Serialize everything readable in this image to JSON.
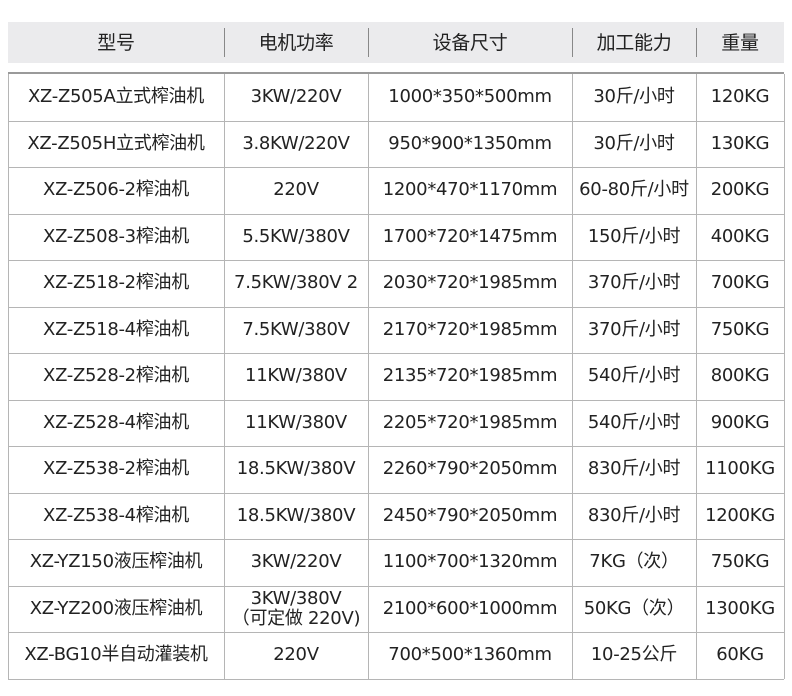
{
  "table": {
    "header": [
      "型号",
      "电机功率",
      "设备尺寸",
      "加工能力",
      "重量"
    ],
    "rows": [
      [
        "XZ-Z505A立式榨油机",
        "3KW/220V",
        "1000*350*500mm",
        "30斤/小时",
        "120KG"
      ],
      [
        "XZ-Z505H立式榨油机",
        "3.8KW/220V",
        "950*900*1350mm",
        "30斤/小时",
        "130KG"
      ],
      [
        "XZ-Z506-2榨油机",
        "220V",
        "1200*470*1170mm",
        "60-80斤/小时",
        "200KG"
      ],
      [
        "XZ-Z508-3榨油机",
        "5.5KW/380V",
        "1700*720*1475mm",
        "150斤/小时",
        "400KG"
      ],
      [
        "XZ-Z518-2榨油机",
        "7.5KW/380V 2",
        "2030*720*1985mm",
        "370斤/小时",
        "700KG"
      ],
      [
        "XZ-Z518-4榨油机",
        "7.5KW/380V",
        "2170*720*1985mm",
        "370斤/小时",
        "750KG"
      ],
      [
        "XZ-Z528-2榨油机",
        "11KW/380V",
        "2135*720*1985mm",
        "540斤/小时",
        "800KG"
      ],
      [
        "XZ-Z528-4榨油机",
        "11KW/380V",
        "2205*720*1985mm",
        "540斤/小时",
        "900KG"
      ],
      [
        "XZ-Z538-2榨油机",
        "18.5KW/380V",
        "2260*790*2050mm",
        "830斤/小时",
        "1100KG"
      ],
      [
        "XZ-Z538-4榨油机",
        "18.5KW/380V",
        "2450*790*2050mm",
        "830斤/小时",
        "1200KG"
      ],
      [
        "XZ-YZ150液压榨油机",
        "3KW/220V",
        "1100*700*1320mm",
        "7KG（次）",
        "750KG"
      ],
      [
        "XZ-YZ200液压榨油机",
        "3KW/380V\n（可定做 220V)",
        "2100*600*1000mm",
        "50KG（次）",
        "1300KG"
      ],
      [
        "XZ-BG10半自动灌装机",
        "220V",
        "700*500*1360mm",
        "10-25公斤",
        "60KG"
      ]
    ]
  }
}
